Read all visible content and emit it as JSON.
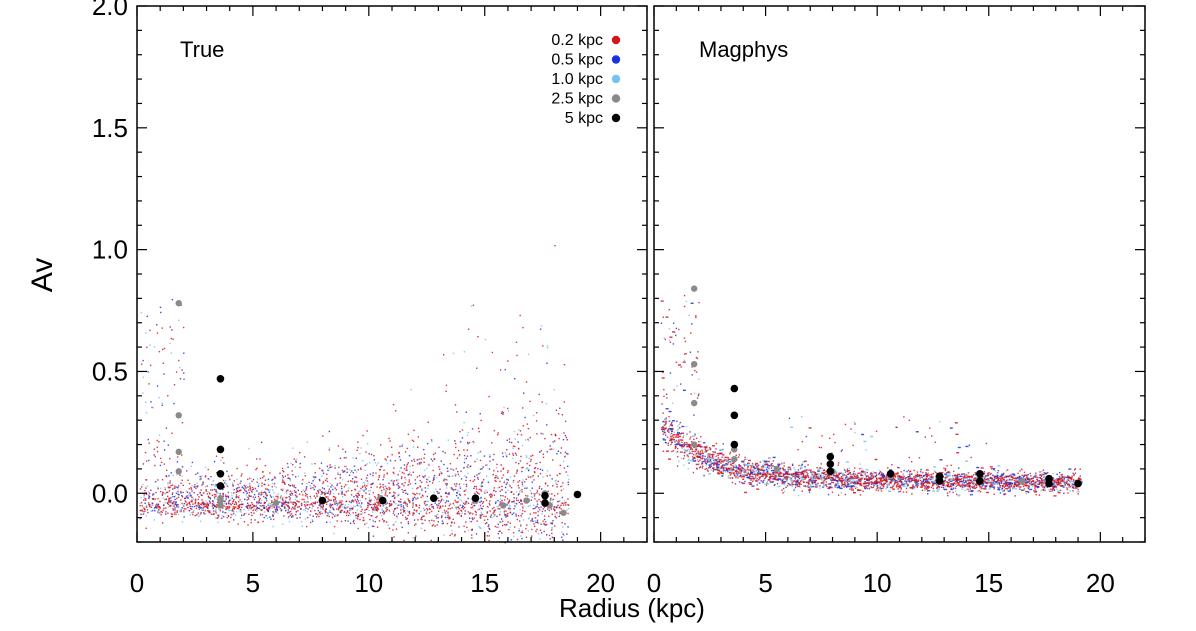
{
  "chart_data": {
    "type": "scatter",
    "ylabel": "Av",
    "xlabel": "Radius (kpc)",
    "xlim": [
      0,
      22
    ],
    "ylim": [
      -0.2,
      2.0
    ],
    "xticks": [
      0,
      5,
      10,
      15,
      20
    ],
    "yticks": [
      0.0,
      0.5,
      1.0,
      1.5,
      2.0
    ],
    "xtick_labels": [
      "0",
      "5",
      "10",
      "15",
      "20"
    ],
    "ytick_labels": [
      "0.0",
      "0.5",
      "1.0",
      "1.5",
      "2.0"
    ],
    "legend": [
      {
        "label": "0.2 kpc",
        "color": "#d4141c"
      },
      {
        "label": "0.5 kpc",
        "color": "#1a2fe0"
      },
      {
        "label": "1.0 kpc",
        "color": "#74c3f2"
      },
      {
        "label": "2.5 kpc",
        "color": "#8a8a8a"
      },
      {
        "label": "5 kpc",
        "color": "#000000"
      }
    ],
    "panels": [
      {
        "title": "True",
        "series": [
          {
            "name": "2.5 kpc",
            "color": "#8a8a8a",
            "x": [
              1.8,
              1.8,
              1.8,
              1.8,
              3.6,
              3.6,
              3.6,
              6.0,
              8.0,
              10.5,
              12.8,
              14.6,
              15.8,
              16.8,
              17.6,
              17.8,
              18.4
            ],
            "y": [
              0.78,
              0.32,
              0.17,
              0.09,
              -0.02,
              -0.05,
              -0.03,
              -0.04,
              -0.03,
              -0.02,
              -0.02,
              -0.03,
              -0.05,
              -0.03,
              0.0,
              -0.05,
              -0.08
            ]
          },
          {
            "name": "5 kpc",
            "color": "#000000",
            "x": [
              3.6,
              3.6,
              3.6,
              3.6,
              8.0,
              10.6,
              12.8,
              14.6,
              17.6,
              17.6,
              19.0
            ],
            "y": [
              0.47,
              0.18,
              0.08,
              0.03,
              -0.03,
              -0.03,
              -0.02,
              -0.02,
              -0.01,
              -0.04,
              -0.005
            ]
          }
        ]
      },
      {
        "title": "Magphys",
        "series": [
          {
            "name": "2.5 kpc",
            "color": "#8a8a8a",
            "x": [
              1.8,
              1.8,
              1.8,
              1.8,
              3.6,
              3.6,
              5.5,
              8.0,
              10.6,
              12.8,
              14.6,
              16.5,
              17.6
            ],
            "y": [
              0.84,
              0.53,
              0.37,
              0.2,
              0.18,
              0.14,
              0.1,
              0.09,
              0.07,
              0.06,
              0.06,
              0.05,
              0.05
            ]
          },
          {
            "name": "5 kpc",
            "color": "#000000",
            "x": [
              3.6,
              3.6,
              3.6,
              7.9,
              7.9,
              7.9,
              10.6,
              12.8,
              12.8,
              14.6,
              14.6,
              17.7,
              17.7,
              19.0
            ],
            "y": [
              0.43,
              0.32,
              0.2,
              0.15,
              0.12,
              0.09,
              0.08,
              0.07,
              0.05,
              0.08,
              0.05,
              0.06,
              0.04,
              0.04
            ]
          }
        ]
      }
    ]
  }
}
